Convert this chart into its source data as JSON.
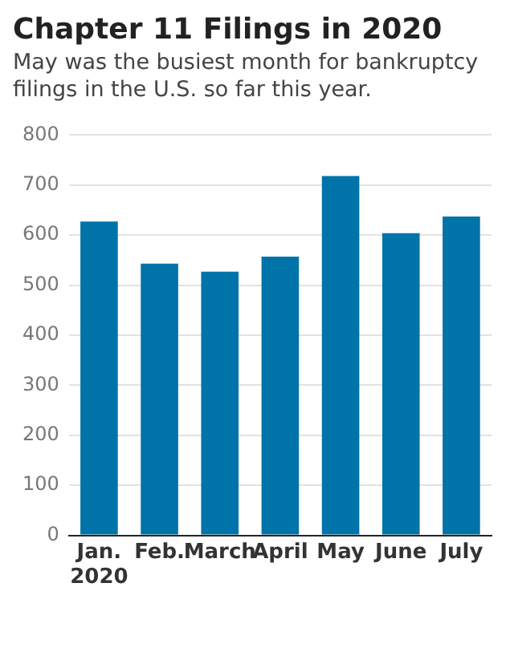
{
  "chart_data": {
    "type": "bar",
    "title": "Chapter 11 Filings in 2020",
    "subtitle": "May was the busiest month for bankruptcy filings in the U.S. so far this year.",
    "categories": [
      "Jan.\n2020",
      "Feb.",
      "March",
      "April",
      "May",
      "June",
      "July"
    ],
    "values": [
      627,
      543,
      527,
      557,
      718,
      604,
      637
    ],
    "color": "#0073a8",
    "ylim": [
      0,
      800
    ],
    "yticks": [
      0,
      100,
      200,
      300,
      400,
      500,
      600,
      700,
      800
    ],
    "grid": "y"
  }
}
